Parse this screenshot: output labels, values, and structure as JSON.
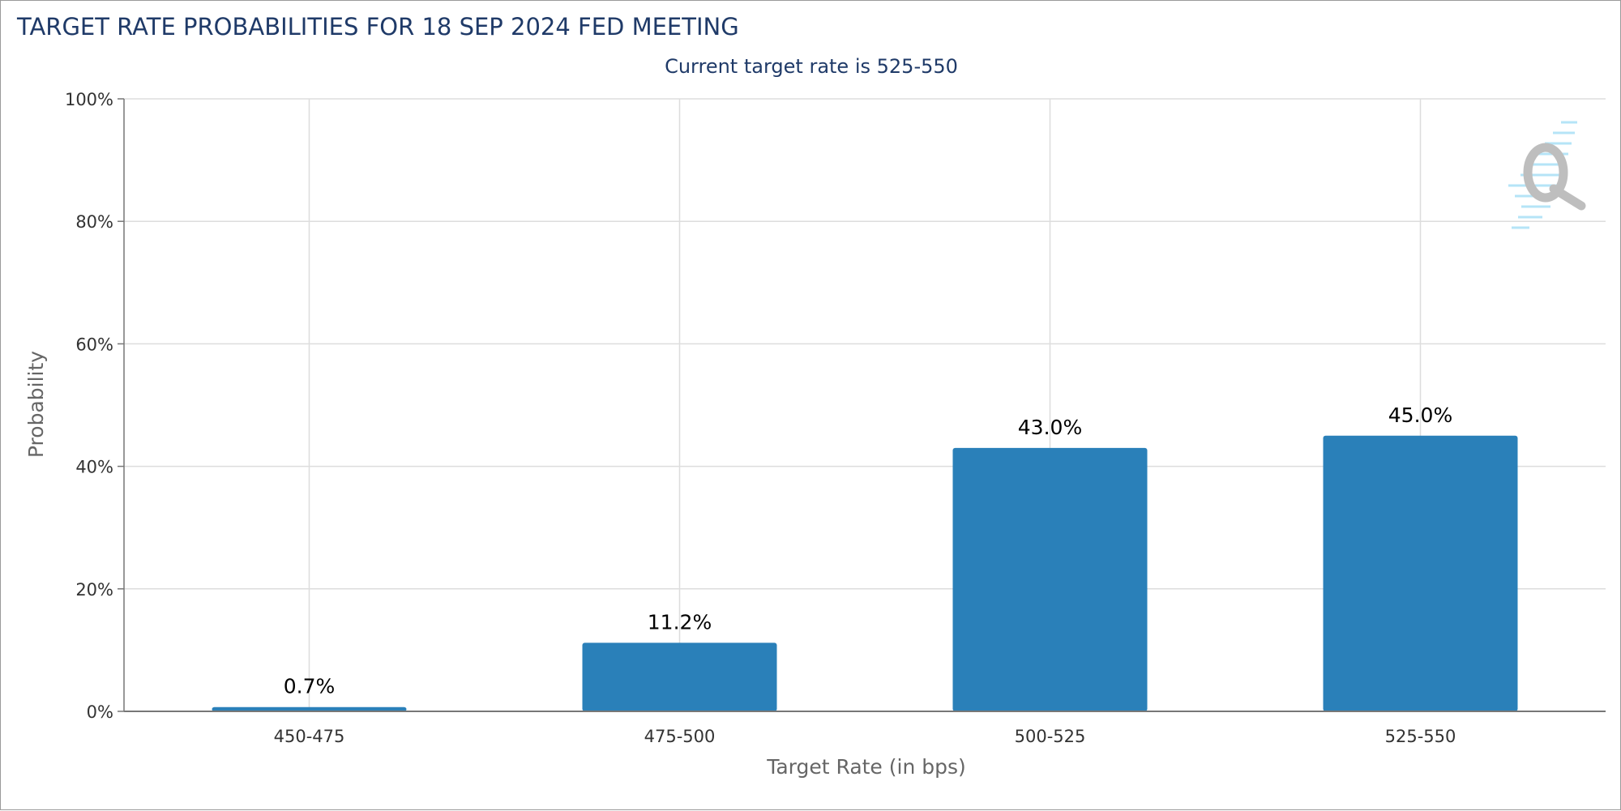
{
  "chart_data": {
    "type": "bar",
    "title": "TARGET RATE PROBABILITIES FOR 18 SEP 2024 FED MEETING",
    "subtitle": "Current target rate is 525-550",
    "xlabel": "Target Rate (in bps)",
    "ylabel": "Probability",
    "categories": [
      "450-475",
      "475-500",
      "500-525",
      "525-550"
    ],
    "values": [
      0.7,
      11.2,
      43.0,
      45.0
    ],
    "data_labels": [
      "0.7%",
      "11.2%",
      "43.0%",
      "45.0%"
    ],
    "ylim": [
      0,
      100
    ],
    "y_ticks": [
      0,
      20,
      40,
      60,
      80,
      100
    ],
    "y_tick_labels": [
      "0%",
      "20%",
      "40%",
      "60%",
      "80%",
      "100%"
    ],
    "grid": true,
    "legend": "none",
    "colors": {
      "bar": "#2a80b9",
      "title": "#1f3a68",
      "grid": "#dddddd",
      "axis": "#777777"
    },
    "watermark_icon": "q-logo-icon"
  }
}
